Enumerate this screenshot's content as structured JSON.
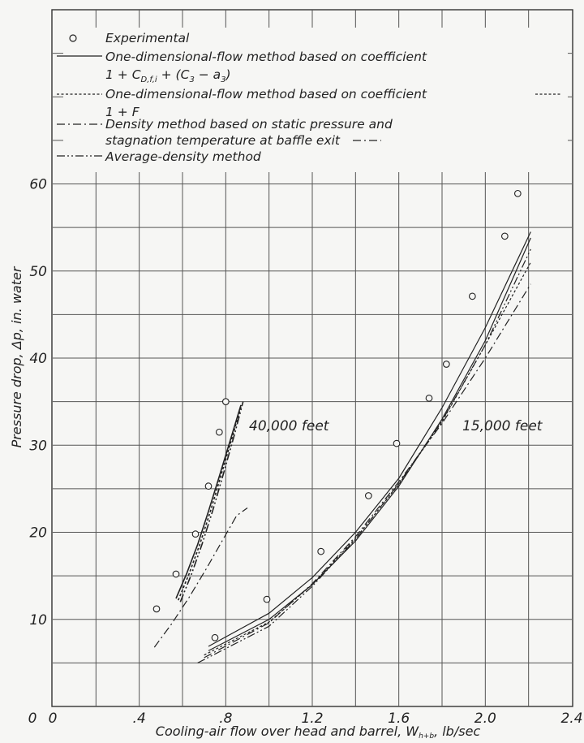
{
  "chart_data": {
    "type": "scatter",
    "xlabel": "Cooling-air flow over head and barrel, W",
    "xlabel_sub": "h+b",
    "xlabel_tail": ", lb/sec",
    "ylabel": "Pressure drop, Δp, in. water",
    "xlim": [
      0,
      2.4
    ],
    "ylim": [
      0,
      80
    ],
    "x_ticks": [
      0,
      0.4,
      0.8,
      1.2,
      1.6,
      2.0,
      2.4
    ],
    "x_tick_labels": [
      "0",
      ".4",
      ".8",
      "1.2",
      "1.6",
      "2.0",
      "2.4"
    ],
    "y_ticks": [
      10,
      20,
      30,
      40,
      50,
      60
    ],
    "y_tick_labels": [
      "10",
      "20",
      "30",
      "40",
      "50",
      "60"
    ],
    "grid": true,
    "legend_position": "top-left",
    "legend": {
      "experimental": "Experimental",
      "one_dim_cdfi_l1": "One-dimensional-flow method based on coefficient",
      "one_dim_cdfi_l2": "1 + C",
      "one_dim_cdfi_sub": "D,f,i",
      "one_dim_cdfi_tail": " + (C",
      "one_dim_cdfi_sub3": "3",
      "one_dim_cdfi_minus": " − a",
      "one_dim_cdfi_sub3b": "3",
      "one_dim_cdfi_close": ")",
      "one_dim_f_l1": "One-dimensional-flow method based on coefficient",
      "one_dim_f_l2": "1 + F",
      "density_l1": "Density method based on static pressure and",
      "density_l2": "stagnation temperature at baffle exit",
      "avg_density": "Average-density method"
    },
    "annotations": {
      "alt_40k": "40,000 feet",
      "alt_15k": "15,000 feet"
    },
    "experimental_points": [
      {
        "x": 0.48,
        "y": 11.2
      },
      {
        "x": 0.57,
        "y": 15.2
      },
      {
        "x": 0.66,
        "y": 19.8
      },
      {
        "x": 0.72,
        "y": 25.3
      },
      {
        "x": 0.77,
        "y": 31.5
      },
      {
        "x": 0.8,
        "y": 35.0
      },
      {
        "x": 0.75,
        "y": 7.9
      },
      {
        "x": 0.99,
        "y": 12.3
      },
      {
        "x": 1.24,
        "y": 17.8
      },
      {
        "x": 1.46,
        "y": 24.2
      },
      {
        "x": 1.59,
        "y": 30.2
      },
      {
        "x": 1.74,
        "y": 35.4
      },
      {
        "x": 1.82,
        "y": 39.3
      },
      {
        "x": 1.94,
        "y": 47.1
      },
      {
        "x": 2.09,
        "y": 54.0
      },
      {
        "x": 2.15,
        "y": 58.9
      }
    ],
    "series": [
      {
        "key": "cdfi",
        "style": "solid",
        "group": "15k",
        "x": [
          0.72,
          1.0,
          1.2,
          1.4,
          1.6,
          1.8,
          2.0,
          2.21
        ],
        "y": [
          6.9,
          10.7,
          14.8,
          20.0,
          26.2,
          34.3,
          43.5,
          54.5
        ]
      },
      {
        "key": "cdfi",
        "style": "solid",
        "group": "15k",
        "x": [
          0.72,
          1.0,
          1.2,
          1.4,
          1.6,
          1.8,
          2.0,
          2.21
        ],
        "y": [
          6.4,
          10.0,
          14.0,
          19.0,
          25.3,
          33.0,
          42.0,
          53.8
        ]
      },
      {
        "key": "f",
        "style": "dashed",
        "group": "15k",
        "x": [
          0.7,
          1.0,
          1.2,
          1.4,
          1.6,
          1.8,
          2.0,
          2.21
        ],
        "y": [
          5.9,
          9.7,
          14.0,
          19.3,
          25.5,
          32.7,
          41.5,
          51.0
        ]
      },
      {
        "key": "density",
        "style": "dashdot",
        "group": "15k",
        "x": [
          0.7,
          1.0,
          1.2,
          1.4,
          1.6,
          1.8,
          2.0,
          2.21
        ],
        "y": [
          5.6,
          9.6,
          14.1,
          19.5,
          25.8,
          32.5,
          40.0,
          48.5
        ]
      },
      {
        "key": "avg",
        "style": "dashdotdot",
        "group": "15k",
        "x": [
          0.67,
          1.0,
          1.2,
          1.4,
          1.6,
          1.8,
          2.0,
          2.21
        ],
        "y": [
          5.0,
          9.2,
          13.8,
          19.2,
          25.6,
          32.8,
          41.5,
          52.5
        ]
      },
      {
        "key": "cdfi",
        "style": "solid",
        "group": "40k",
        "x": [
          0.57,
          0.62,
          0.67,
          0.72,
          0.77,
          0.82,
          0.87
        ],
        "y": [
          12.4,
          15.3,
          18.6,
          22.4,
          26.4,
          30.5,
          34.6
        ]
      },
      {
        "key": "f",
        "style": "dashed",
        "group": "40k",
        "x": [
          0.58,
          0.63,
          0.68,
          0.73,
          0.78,
          0.83,
          0.87
        ],
        "y": [
          12.2,
          15.2,
          18.6,
          22.5,
          26.7,
          30.9,
          34.4
        ]
      },
      {
        "key": "avg",
        "style": "dashdotdot",
        "group": "40k",
        "x": [
          0.59,
          0.64,
          0.69,
          0.74,
          0.79,
          0.84,
          0.88
        ],
        "y": [
          12.0,
          15.1,
          18.6,
          22.5,
          26.8,
          31.2,
          35.0
        ]
      },
      {
        "key": "density",
        "style": "dashdot",
        "group": "40k",
        "x": [
          0.47,
          0.55,
          0.63,
          0.71,
          0.79,
          0.85,
          0.9
        ],
        "y": [
          6.8,
          9.5,
          12.5,
          15.8,
          19.3,
          21.9,
          22.8
        ]
      }
    ]
  }
}
